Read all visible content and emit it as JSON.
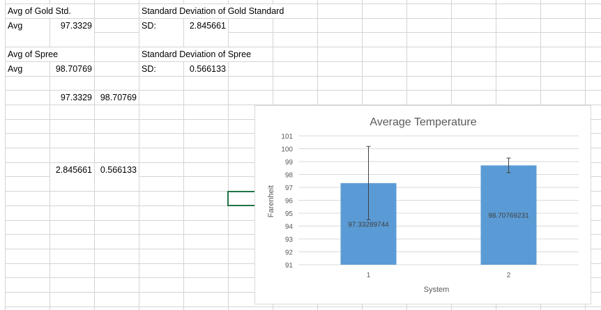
{
  "sheet": {
    "cells": [
      {
        "ref": "A1",
        "row": 1,
        "col": 0,
        "text": "Avg of Gold Std.",
        "align": "left"
      },
      {
        "ref": "D1",
        "row": 1,
        "col": 3,
        "text": "Standard Deviation of Gold Standard",
        "align": "left"
      },
      {
        "ref": "A2",
        "row": 2,
        "col": 0,
        "text": "Avg",
        "align": "left"
      },
      {
        "ref": "B2",
        "row": 2,
        "col": 1,
        "text": "97.3329",
        "align": "right"
      },
      {
        "ref": "D2",
        "row": 2,
        "col": 3,
        "text": "SD:",
        "align": "left"
      },
      {
        "ref": "E2",
        "row": 2,
        "col": 4,
        "text": "2.845661",
        "align": "right"
      },
      {
        "ref": "A4",
        "row": 4,
        "col": 0,
        "text": "Avg of Spree",
        "align": "left"
      },
      {
        "ref": "D4",
        "row": 4,
        "col": 3,
        "text": "Standard Deviation of Spree",
        "align": "left"
      },
      {
        "ref": "A5",
        "row": 5,
        "col": 0,
        "text": "Avg",
        "align": "left"
      },
      {
        "ref": "B5",
        "row": 5,
        "col": 1,
        "text": "98.70769",
        "align": "right"
      },
      {
        "ref": "D5",
        "row": 5,
        "col": 3,
        "text": "SD:",
        "align": "left"
      },
      {
        "ref": "E5",
        "row": 5,
        "col": 4,
        "text": "0.566133",
        "align": "right"
      },
      {
        "ref": "B7",
        "row": 7,
        "col": 1,
        "text": "97.3329",
        "align": "right"
      },
      {
        "ref": "C7",
        "row": 7,
        "col": 2,
        "text": "98.70769",
        "align": "right"
      },
      {
        "ref": "B12",
        "row": 12,
        "col": 1,
        "text": "2.845661",
        "align": "right"
      },
      {
        "ref": "C12",
        "row": 12,
        "col": 2,
        "text": "0.566133",
        "align": "right"
      }
    ],
    "selected_cell": "F14",
    "colors": {
      "gridline": "#d4d4d4",
      "selection": "#217346"
    }
  },
  "chart_data": {
    "type": "bar",
    "title": "Average Temperature",
    "xlabel": "System",
    "ylabel": "Farenheit",
    "categories": [
      "1",
      "2"
    ],
    "values": [
      97.33289744,
      98.70769231
    ],
    "data_labels": [
      "97.33289744",
      "98.70769231"
    ],
    "error_bars": [
      2.845661,
      0.566133
    ],
    "ylim": [
      91,
      101
    ],
    "yticks": [
      "91",
      "92",
      "93",
      "94",
      "95",
      "96",
      "97",
      "98",
      "99",
      "100",
      "101"
    ],
    "grid": true,
    "legend": "none",
    "bar_color": "#5b9bd5"
  }
}
